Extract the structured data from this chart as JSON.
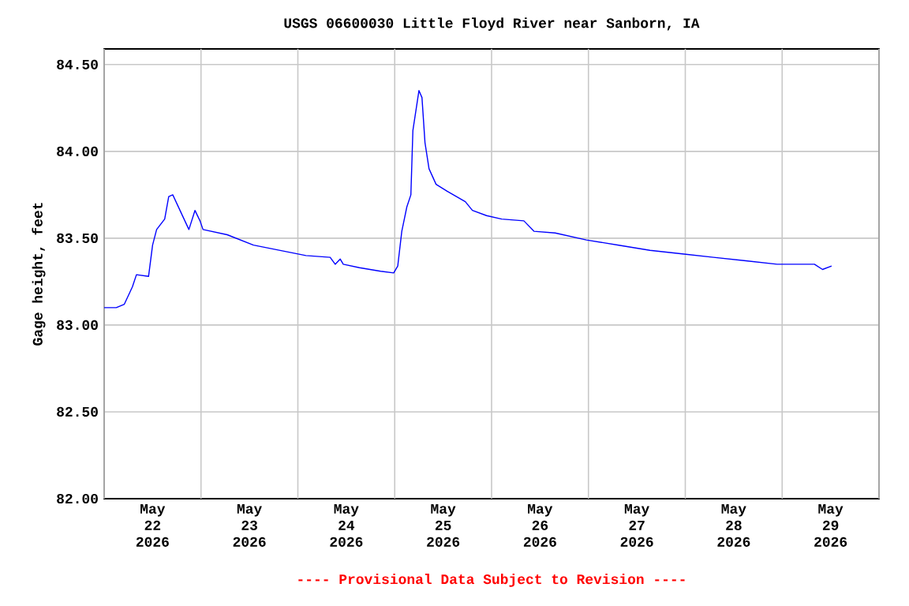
{
  "chart_data": {
    "type": "line",
    "title": "USGS 06600030 Little Floyd River near Sanborn, IA",
    "ylabel": "Gage height, feet",
    "annotations": [
      "---- Provisional Data Subject to Revision ----"
    ],
    "x": [
      "2026-05-22T00:00",
      "2026-05-22T03:00",
      "2026-05-22T05:00",
      "2026-05-22T07:00",
      "2026-05-22T08:00",
      "2026-05-22T11:00",
      "2026-05-22T12:00",
      "2026-05-22T13:00",
      "2026-05-22T15:00",
      "2026-05-22T16:00",
      "2026-05-22T17:00",
      "2026-05-22T18:00",
      "2026-05-22T20:00",
      "2026-05-22T21:00",
      "2026-05-22T22:30",
      "2026-05-22T23:45",
      "2026-05-23T00:30",
      "2026-05-23T06:30",
      "2026-05-23T13:00",
      "2026-05-23T19:30",
      "2026-05-24T02:00",
      "2026-05-24T08:00",
      "2026-05-24T09:15",
      "2026-05-24T10:30",
      "2026-05-24T11:15",
      "2026-05-24T15:15",
      "2026-05-24T20:30",
      "2026-05-24T23:45",
      "2026-05-25T00:45",
      "2026-05-25T01:45",
      "2026-05-25T03:00",
      "2026-05-25T04:00",
      "2026-05-25T04:30",
      "2026-05-25T06:00",
      "2026-05-25T06:45",
      "2026-05-25T07:30",
      "2026-05-25T08:30",
      "2026-05-25T10:15",
      "2026-05-25T13:00",
      "2026-05-25T17:30",
      "2026-05-25T19:15",
      "2026-05-25T22:45",
      "2026-05-26T02:30",
      "2026-05-26T08:00",
      "2026-05-26T10:30",
      "2026-05-26T15:45",
      "2026-05-26T23:30",
      "2026-05-27T07:30",
      "2026-05-27T15:15",
      "2026-05-27T23:15",
      "2026-05-28T07:00",
      "2026-05-28T15:00",
      "2026-05-28T22:45",
      "2026-05-29T08:00",
      "2026-05-29T10:00",
      "2026-05-29T12:15"
    ],
    "series": [
      {
        "color": "#0000ff",
        "values": [
          83.1,
          83.1,
          83.12,
          83.22,
          83.29,
          83.28,
          83.46,
          83.55,
          83.61,
          83.74,
          83.75,
          83.7,
          83.6,
          83.55,
          83.66,
          83.6,
          83.55,
          83.52,
          83.46,
          83.43,
          83.4,
          83.39,
          83.35,
          83.38,
          83.35,
          83.33,
          83.31,
          83.3,
          83.34,
          83.54,
          83.68,
          83.75,
          84.12,
          84.35,
          84.31,
          84.05,
          83.9,
          83.81,
          83.77,
          83.71,
          83.66,
          83.63,
          83.61,
          83.6,
          83.54,
          83.53,
          83.49,
          83.46,
          83.43,
          83.41,
          83.39,
          83.37,
          83.35,
          83.35,
          83.32,
          83.34
        ]
      }
    ],
    "xlim": [
      "2026-05-22T00:00",
      "2026-05-30T00:00"
    ],
    "ylim": [
      82,
      84.59
    ],
    "xticks": [
      {
        "value": "2026-05-22T00:00",
        "label": null
      },
      {
        "value": "2026-05-22T12:00",
        "label": "May 22 2026"
      },
      {
        "value": "2026-05-23T00:00",
        "label": null
      },
      {
        "value": "2026-05-23T12:00",
        "label": "May 23 2026"
      },
      {
        "value": "2026-05-24T00:00",
        "label": null
      },
      {
        "value": "2026-05-24T12:00",
        "label": "May 24 2026"
      },
      {
        "value": "2026-05-25T00:00",
        "label": null
      },
      {
        "value": "2026-05-25T12:00",
        "label": "May 25 2026"
      },
      {
        "value": "2026-05-26T00:00",
        "label": null
      },
      {
        "value": "2026-05-26T12:00",
        "label": "May 26 2026"
      },
      {
        "value": "2026-05-27T00:00",
        "label": null
      },
      {
        "value": "2026-05-27T12:00",
        "label": "May 27 2026"
      },
      {
        "value": "2026-05-28T00:00",
        "label": null
      },
      {
        "value": "2026-05-28T12:00",
        "label": "May 28 2026"
      },
      {
        "value": "2026-05-29T00:00",
        "label": null
      },
      {
        "value": "2026-05-29T12:00",
        "label": "May 29 2026"
      },
      {
        "value": "2026-05-30T00:00",
        "label": null
      }
    ],
    "yticks": [
      {
        "value": 82,
        "label": "82.00"
      },
      {
        "value": 82.5,
        "label": "82.50"
      },
      {
        "value": 83,
        "label": "83.00"
      },
      {
        "value": 83.5,
        "label": "83.50"
      },
      {
        "value": 84,
        "label": "84.00"
      },
      {
        "value": 84.5,
        "label": "84.50"
      }
    ],
    "grid": true,
    "marker": "none",
    "line_style": "solid"
  }
}
